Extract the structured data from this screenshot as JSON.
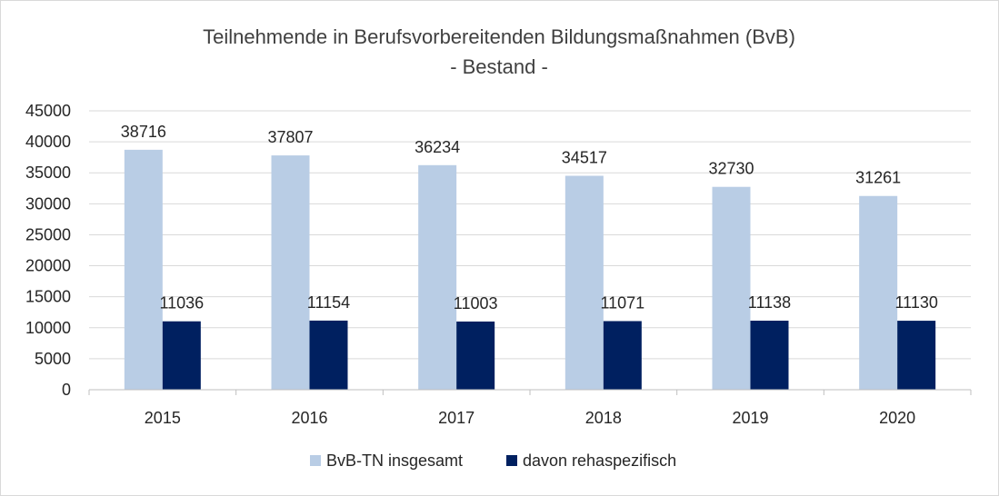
{
  "chart_data": {
    "type": "bar",
    "title": "Teilnehmende in Berufsvorbereitenden Bildungsmaßnahmen (BvB)",
    "subtitle": "- Bestand -",
    "categories": [
      "2015",
      "2016",
      "2017",
      "2018",
      "2019",
      "2020"
    ],
    "series": [
      {
        "name": "BvB-TN insgesamt",
        "color": "#b9cde5",
        "values": [
          38716,
          37807,
          36234,
          34517,
          32730,
          31261
        ]
      },
      {
        "name": "davon rehaspezifisch",
        "color": "#002060",
        "values": [
          11036,
          11154,
          11003,
          11071,
          11138,
          11130
        ]
      }
    ],
    "ylim": [
      0,
      45000
    ],
    "yticks": [
      0,
      5000,
      10000,
      15000,
      20000,
      25000,
      30000,
      35000,
      40000,
      45000
    ],
    "grid": true,
    "legend": "bottom",
    "data_labels": true
  }
}
